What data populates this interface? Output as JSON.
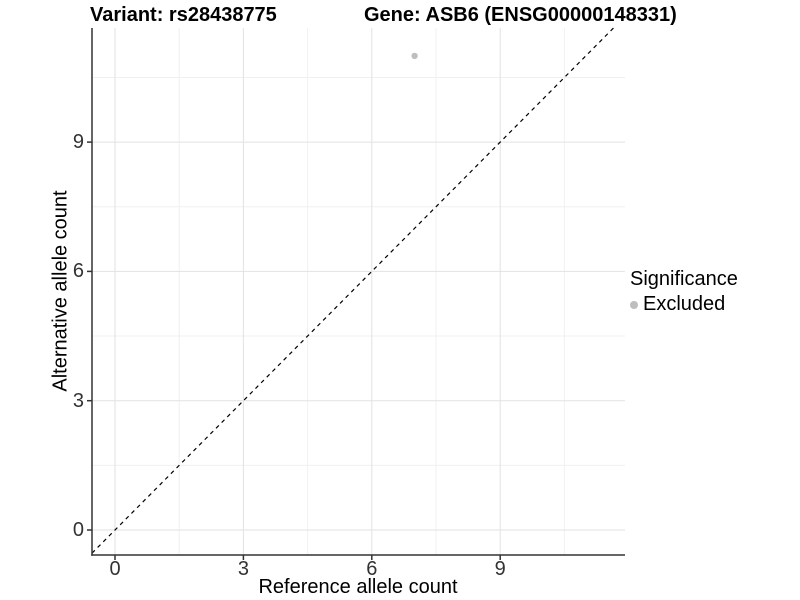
{
  "chart_data": {
    "type": "scatter",
    "titles": {
      "left": "Variant: rs28438775",
      "right": "Gene: ASB6 (ENSG00000148331)"
    },
    "xlabel": "Reference allele count",
    "ylabel": "Alternative allele count",
    "x_ticks": [
      0,
      3,
      6,
      9
    ],
    "y_ticks": [
      0,
      3,
      6,
      9
    ],
    "x_minor_ticks": [
      1.5,
      4.5,
      7.5,
      10.5
    ],
    "y_minor_ticks": [
      1.5,
      4.5,
      7.5,
      10.5
    ],
    "xlim": [
      -0.54,
      11.92
    ],
    "ylim": [
      -0.58,
      11.65
    ],
    "grid": true,
    "reference_line": {
      "style": "dashed",
      "slope": 1,
      "intercept": 0,
      "color": "#000000"
    },
    "series": [
      {
        "name": "Excluded",
        "color": "#bebebe",
        "point_radius": 3.2,
        "points": [
          [
            7,
            11
          ]
        ]
      }
    ],
    "legend": {
      "title": "Significance",
      "position": "right",
      "entries": [
        {
          "label": "Excluded",
          "color": "#bebebe"
        }
      ]
    },
    "colors": {
      "axis": "#333333",
      "tick_label": "#333333",
      "grid_major": "#e2e2e2",
      "grid_minor": "#f0f0f0",
      "background": "#ffffff"
    }
  }
}
